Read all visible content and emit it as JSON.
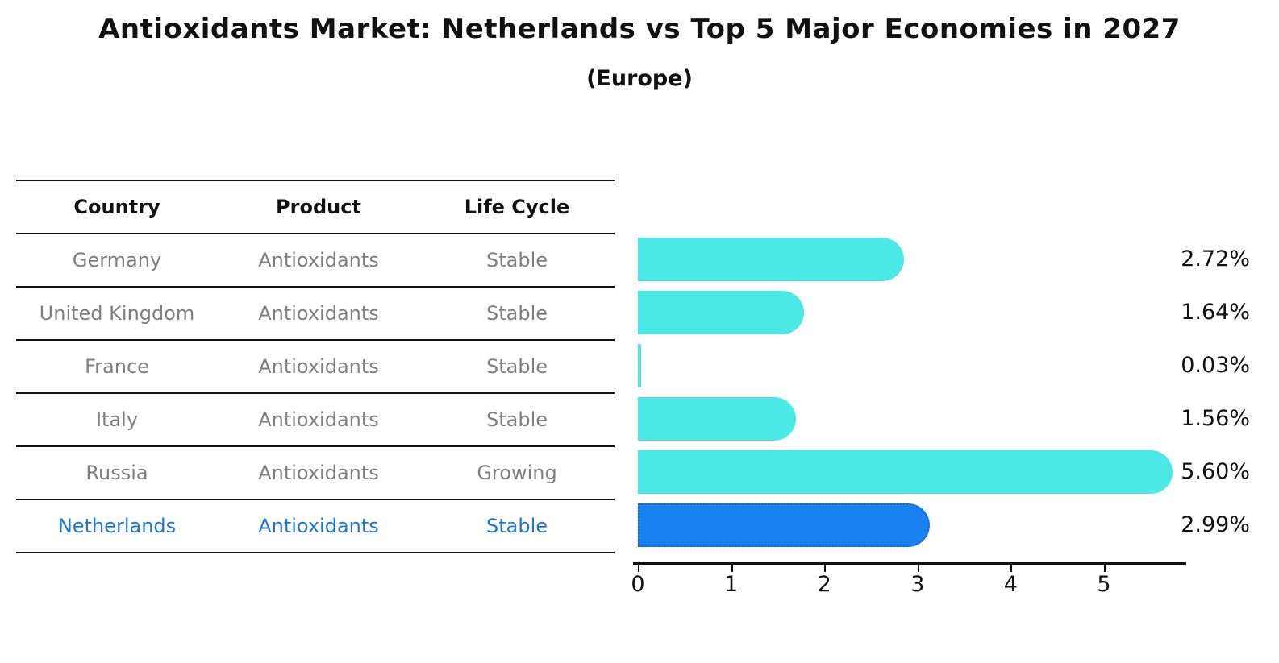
{
  "title": "Antioxidants Market: Netherlands vs Top 5 Major Economies in 2027",
  "subtitle": "(Europe)",
  "table": {
    "headers": [
      "Country",
      "Product",
      "Life Cycle"
    ],
    "rows": [
      {
        "country": "Germany",
        "product": "Antioxidants",
        "life_cycle": "Stable",
        "highlight": false
      },
      {
        "country": "United Kingdom",
        "product": "Antioxidants",
        "life_cycle": "Stable",
        "highlight": false
      },
      {
        "country": "France",
        "product": "Antioxidants",
        "life_cycle": "Stable",
        "highlight": false
      },
      {
        "country": "Italy",
        "product": "Antioxidants",
        "life_cycle": "Stable",
        "highlight": false
      },
      {
        "country": "Russia",
        "product": "Antioxidants",
        "life_cycle": "Growing",
        "highlight": false
      },
      {
        "country": "Netherlands",
        "product": "Antioxidants",
        "life_cycle": "Stable",
        "highlight": true
      }
    ]
  },
  "chart_data": {
    "type": "bar",
    "orientation": "horizontal",
    "title": "Antioxidants Market: Netherlands vs Top 5 Major Economies in 2027",
    "subtitle": "(Europe)",
    "categories": [
      "Germany",
      "United Kingdom",
      "France",
      "Italy",
      "Russia",
      "Netherlands"
    ],
    "values": [
      2.72,
      1.64,
      0.03,
      1.56,
      5.6,
      2.99
    ],
    "value_labels": [
      "2.72%",
      "1.64%",
      "0.03%",
      "1.56%",
      "5.60%",
      "2.99%"
    ],
    "xlabel": "",
    "ylabel": "",
    "xticks": [
      0,
      1,
      2,
      3,
      4,
      5
    ],
    "xlim": [
      0,
      5.9
    ],
    "grid": false,
    "legend": false,
    "highlight_index": 5
  },
  "colors": {
    "bar": "#4AE9E6",
    "highlight_bar": "#1A82F0",
    "highlight_border": "#1565C8",
    "highlight_text": "#2176D4",
    "row_text": "#7F7F7F",
    "header_text": "#111111",
    "value_text": "#111111",
    "axis": "#111111"
  }
}
